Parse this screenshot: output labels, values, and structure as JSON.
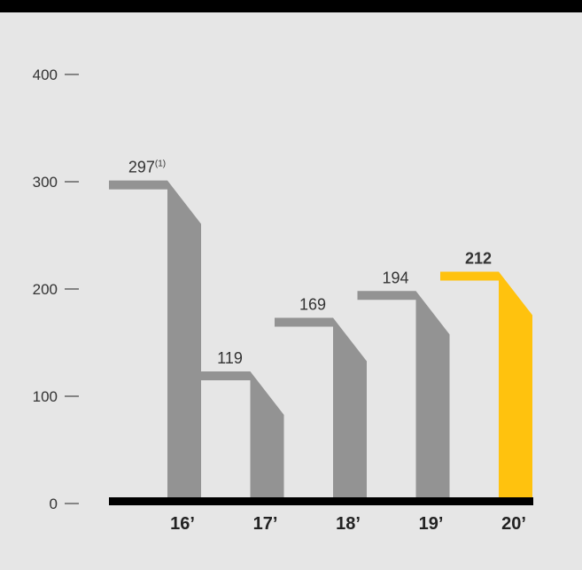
{
  "chart_data": {
    "type": "bar",
    "title": "",
    "xlabel": "",
    "ylabel": "",
    "categories": [
      "16’",
      "17’",
      "18’",
      "19’",
      "20’"
    ],
    "values": [
      297,
      119,
      169,
      194,
      212
    ],
    "value_labels": [
      "297",
      "119",
      "169",
      "194",
      "212"
    ],
    "footnote_marks": [
      "(1)",
      "",
      "",
      "",
      ""
    ],
    "highlight_index": 4,
    "ylim": [
      0,
      400
    ],
    "yticks": [
      0,
      100,
      200,
      300,
      400
    ],
    "grid": false,
    "colors": {
      "bar": "#939393",
      "highlight": "#ffc20e",
      "baseline": "#000000",
      "text": "#333333"
    }
  }
}
